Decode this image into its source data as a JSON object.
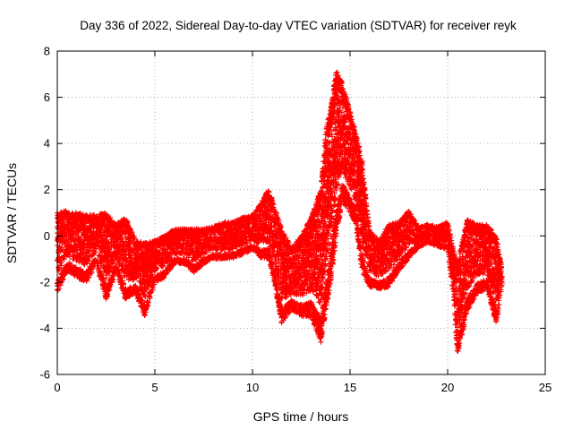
{
  "chart_data": {
    "type": "scatter",
    "title": "Day 336 of 2022, Sidereal Day-to-day VTEC variation (SDTVAR) for receiver reyk",
    "xlabel": "GPS time / hours",
    "ylabel": "SDTVAR / TECUs",
    "xlim": [
      0,
      25
    ],
    "ylim": [
      -6,
      8
    ],
    "xticks": [
      "0",
      "5",
      "10",
      "15",
      "20",
      "25"
    ],
    "yticks": [
      "-6",
      "-4",
      "-2",
      "0",
      "2",
      "4",
      "6",
      "8"
    ],
    "grid": true,
    "marker": "+",
    "color": "#ff0000",
    "series": [
      {
        "name": "SDTVAR",
        "description": "Dense '+' markers tracing several satellite arcs; envelope shown as [hour, low, high] samples",
        "envelope": [
          [
            0.0,
            -2.5,
            1.0
          ],
          [
            0.5,
            -1.5,
            1.1
          ],
          [
            1.0,
            -1.8,
            1.0
          ],
          [
            1.5,
            -2.0,
            0.9
          ],
          [
            2.0,
            -1.2,
            0.9
          ],
          [
            2.5,
            -2.8,
            1.0
          ],
          [
            3.0,
            -1.5,
            0.5
          ],
          [
            3.5,
            -2.8,
            0.8
          ],
          [
            4.0,
            -2.5,
            -0.2
          ],
          [
            4.5,
            -3.5,
            -0.3
          ],
          [
            5.0,
            -2.0,
            -0.2
          ],
          [
            5.5,
            -1.8,
            0.0
          ],
          [
            6.0,
            -1.2,
            0.3
          ],
          [
            6.5,
            -1.2,
            0.3
          ],
          [
            7.0,
            -1.6,
            0.3
          ],
          [
            7.5,
            -1.2,
            0.3
          ],
          [
            8.0,
            -1.0,
            0.4
          ],
          [
            8.5,
            -1.0,
            0.6
          ],
          [
            9.0,
            -1.0,
            0.6
          ],
          [
            9.5,
            -0.8,
            0.8
          ],
          [
            10.0,
            -0.6,
            0.9
          ],
          [
            10.5,
            -1.0,
            1.5
          ],
          [
            10.8,
            -1.0,
            2.0
          ],
          [
            11.0,
            -1.5,
            1.6
          ],
          [
            11.5,
            -3.8,
            0.3
          ],
          [
            12.0,
            -3.2,
            -0.5
          ],
          [
            12.5,
            -3.5,
            0.0
          ],
          [
            13.0,
            -3.5,
            0.8
          ],
          [
            13.5,
            -4.6,
            2.0
          ],
          [
            13.8,
            -3.0,
            4.8
          ],
          [
            14.0,
            -2.0,
            5.5
          ],
          [
            14.3,
            0.0,
            7.2
          ],
          [
            14.6,
            1.5,
            6.6
          ],
          [
            15.0,
            1.0,
            5.4
          ],
          [
            15.3,
            0.5,
            4.5
          ],
          [
            15.6,
            -1.5,
            3.3
          ],
          [
            16.0,
            -2.2,
            0.2
          ],
          [
            16.5,
            -2.3,
            -0.2
          ],
          [
            17.0,
            -2.2,
            0.5
          ],
          [
            17.5,
            -1.5,
            0.6
          ],
          [
            18.0,
            -1.0,
            1.1
          ],
          [
            18.5,
            -0.5,
            0.4
          ],
          [
            19.0,
            -0.3,
            0.5
          ],
          [
            19.5,
            -0.5,
            0.4
          ],
          [
            20.0,
            -0.6,
            0.6
          ],
          [
            20.3,
            -2.5,
            -0.6
          ],
          [
            20.5,
            -5.2,
            -1.2
          ],
          [
            21.0,
            -3.3,
            0.7
          ],
          [
            21.5,
            -2.5,
            0.5
          ],
          [
            22.0,
            -2.3,
            0.5
          ],
          [
            22.5,
            -3.8,
            0.0
          ],
          [
            22.8,
            -2.0,
            -1.5
          ]
        ]
      }
    ]
  }
}
